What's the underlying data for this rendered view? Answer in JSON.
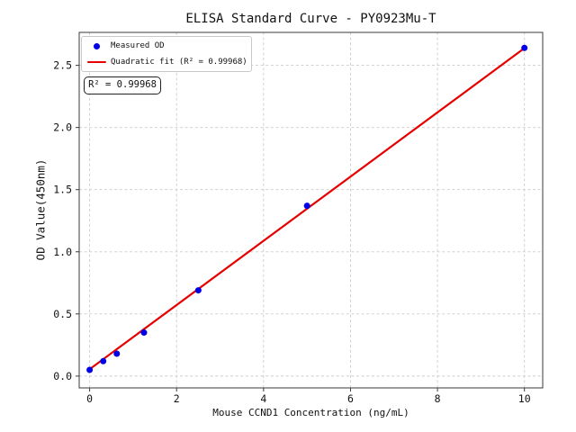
{
  "chart_data": {
    "type": "scatter",
    "title": "ELISA Standard Curve - PY0923Mu-T",
    "xlabel": "Mouse CCND1 Concentration (ng/mL)",
    "ylabel": "OD Value(450nm)",
    "xlim": [
      -0.24,
      10.42
    ],
    "ylim": [
      -0.095,
      2.765
    ],
    "xtick_values": [
      0,
      2,
      4,
      6,
      8,
      10
    ],
    "xtick_labels": [
      "0",
      "2",
      "4",
      "6",
      "8",
      "10"
    ],
    "ytick_values": [
      0.0,
      0.5,
      1.0,
      1.5,
      2.0,
      2.5
    ],
    "ytick_labels": [
      "0.0",
      "0.5",
      "1.0",
      "1.5",
      "2.0",
      "2.5"
    ],
    "grid": true,
    "grid_style": "dashed",
    "legend_position": "upper left",
    "series": [
      {
        "name": "Measured OD",
        "type": "scatter",
        "color": "#0000e6",
        "x": [
          0,
          0.3125,
          0.625,
          1.25,
          2.5,
          5,
          10
        ],
        "y": [
          0.05,
          0.12,
          0.18,
          0.35,
          0.69,
          1.37,
          2.64
        ]
      },
      {
        "name": "Quadratic fit (R² = 0.99968)",
        "type": "line",
        "color": "#e60000",
        "x": [
          0,
          10
        ],
        "y": [
          0.055,
          2.638
        ]
      }
    ],
    "annotation": "R² = 0.99968",
    "r_squared": 0.99968
  },
  "colors": {
    "background": "#ffffff",
    "grid": "#cccccc",
    "frame": "#3a3a3a",
    "text": "#111111",
    "legend_border": "#c9c9c9"
  }
}
